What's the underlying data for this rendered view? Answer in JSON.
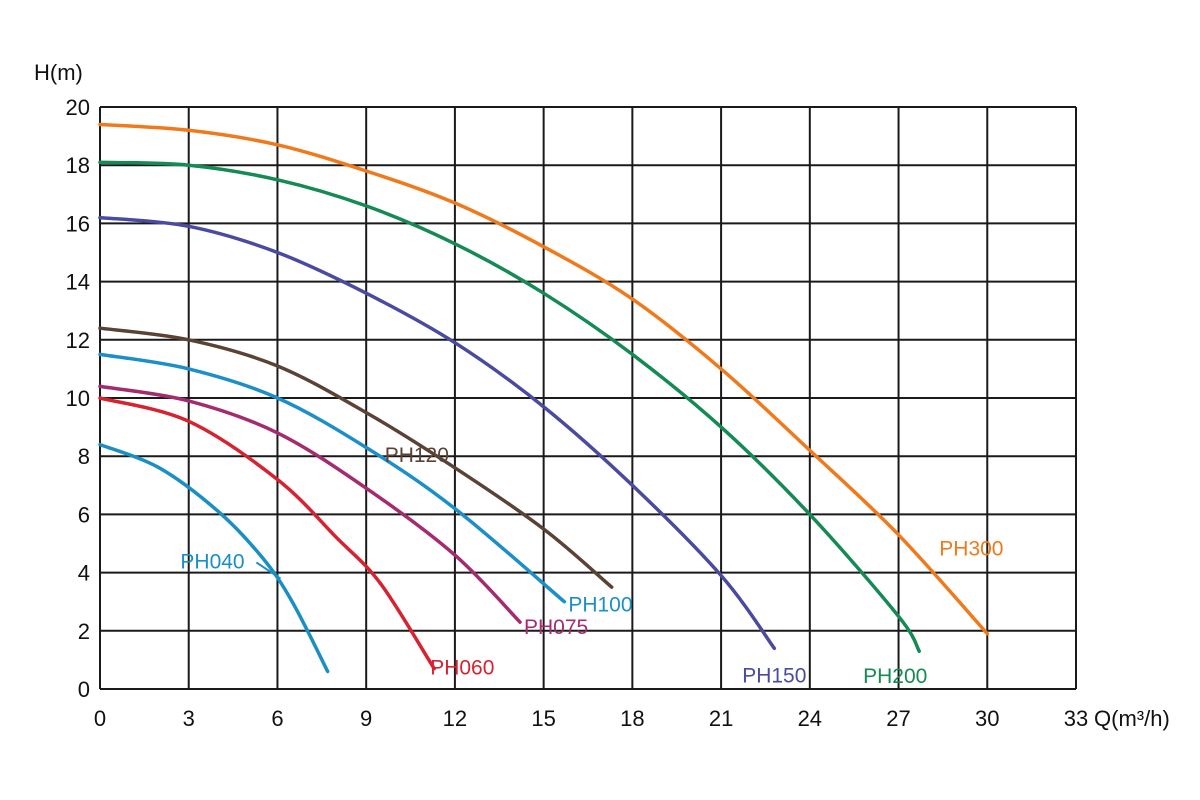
{
  "chart_data": {
    "type": "line",
    "title": "",
    "xlabel": "Q(m³/h)",
    "ylabel": "H(m)",
    "xlim": [
      0,
      33
    ],
    "ylim": [
      0,
      20
    ],
    "xticks": [
      "0",
      "3",
      "6",
      "9",
      "12",
      "15",
      "18",
      "21",
      "24",
      "27",
      "30",
      "33"
    ],
    "yticks": [
      "0",
      "2",
      "4",
      "6",
      "8",
      "10",
      "12",
      "14",
      "16",
      "18",
      "20"
    ],
    "grid": true,
    "legend": "inline labels",
    "series": [
      {
        "name": "PH040",
        "color": "#1a8fc4",
        "points": [
          [
            0,
            8.4
          ],
          [
            2,
            7.6
          ],
          [
            4,
            6.1
          ],
          [
            5.5,
            4.5
          ],
          [
            6.5,
            3.0
          ],
          [
            7.7,
            0.6
          ]
        ]
      },
      {
        "name": "PH060",
        "color": "#d62231",
        "points": [
          [
            0,
            10.0
          ],
          [
            3,
            9.2
          ],
          [
            6,
            7.2
          ],
          [
            8,
            5.2
          ],
          [
            9.5,
            3.6
          ],
          [
            11.3,
            0.7
          ]
        ]
      },
      {
        "name": "PH075",
        "color": "#a32b6e",
        "points": [
          [
            0,
            10.4
          ],
          [
            3,
            9.9
          ],
          [
            6,
            8.8
          ],
          [
            9,
            6.9
          ],
          [
            12,
            4.6
          ],
          [
            14.2,
            2.3
          ]
        ]
      },
      {
        "name": "PH100",
        "color": "#1c8fc9",
        "points": [
          [
            0,
            11.5
          ],
          [
            3,
            11.0
          ],
          [
            6,
            10.0
          ],
          [
            9,
            8.3
          ],
          [
            12,
            6.2
          ],
          [
            15.7,
            3.0
          ]
        ]
      },
      {
        "name": "PH120",
        "color": "#5a4235",
        "points": [
          [
            0,
            12.4
          ],
          [
            3,
            12.0
          ],
          [
            6,
            11.1
          ],
          [
            9,
            9.5
          ],
          [
            12,
            7.6
          ],
          [
            15,
            5.5
          ],
          [
            17.3,
            3.5
          ]
        ]
      },
      {
        "name": "PH150",
        "color": "#4a4aa0",
        "points": [
          [
            0,
            16.2
          ],
          [
            3,
            15.9
          ],
          [
            6,
            15.0
          ],
          [
            9,
            13.6
          ],
          [
            12,
            11.9
          ],
          [
            15,
            9.7
          ],
          [
            18,
            7.0
          ],
          [
            21,
            3.9
          ],
          [
            22.8,
            1.4
          ]
        ]
      },
      {
        "name": "PH200",
        "color": "#158a55",
        "points": [
          [
            0,
            18.1
          ],
          [
            3,
            18.0
          ],
          [
            6,
            17.5
          ],
          [
            9,
            16.6
          ],
          [
            12,
            15.3
          ],
          [
            15,
            13.6
          ],
          [
            18,
            11.5
          ],
          [
            21,
            9.0
          ],
          [
            24,
            6.0
          ],
          [
            27,
            2.5
          ],
          [
            27.7,
            1.3
          ]
        ]
      },
      {
        "name": "PH300",
        "color": "#f07a1b",
        "points": [
          [
            0,
            19.4
          ],
          [
            3,
            19.2
          ],
          [
            6,
            18.7
          ],
          [
            9,
            17.8
          ],
          [
            12,
            16.7
          ],
          [
            15,
            15.2
          ],
          [
            18,
            13.4
          ],
          [
            21,
            11.0
          ],
          [
            24,
            8.2
          ],
          [
            27,
            5.3
          ],
          [
            30,
            1.9
          ]
        ]
      }
    ]
  }
}
